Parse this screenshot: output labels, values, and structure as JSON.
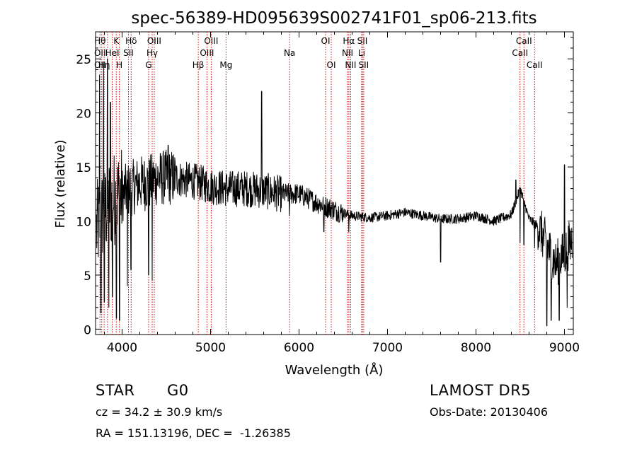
{
  "chart_data": {
    "type": "line",
    "title": "spec-56389-HD095639S002741F01_sp06-213.fits",
    "xlabel": "Wavelength (Å)",
    "ylabel": "Flux (relative)",
    "xlim": [
      3700,
      9100
    ],
    "ylim": [
      -0.5,
      27.5
    ],
    "x_ticks": [
      4000,
      5000,
      6000,
      7000,
      8000,
      9000
    ],
    "x_tick_labels": [
      "4000",
      "5000",
      "6000",
      "7000",
      "8000",
      "9000"
    ],
    "y_ticks": [
      0,
      5,
      10,
      15,
      20,
      25
    ],
    "y_tick_labels": [
      "0",
      "5",
      "10",
      "15",
      "20",
      "25"
    ],
    "grid": false,
    "line_color": "#000000",
    "marker_color": "#cc0000",
    "spectrum_trend": {
      "x": [
        3700,
        3800,
        3900,
        4000,
        4100,
        4200,
        4300,
        4400,
        4500,
        4600,
        4700,
        4800,
        4900,
        5000,
        5200,
        5400,
        5600,
        5800,
        6000,
        6200,
        6400,
        6600,
        6800,
        7000,
        7200,
        7400,
        7600,
        7800,
        8000,
        8200,
        8400,
        8500,
        8600,
        8700,
        8800,
        8900,
        9000,
        9100
      ],
      "y": [
        9,
        11,
        12,
        12.5,
        13,
        13.5,
        13.5,
        14,
        14,
        14,
        13.8,
        13.7,
        13.5,
        13.2,
        13,
        13,
        12.8,
        12.5,
        12.5,
        11.7,
        11,
        10.5,
        10.3,
        10.5,
        10.8,
        10.5,
        10.2,
        10.2,
        10.5,
        10,
        10.6,
        13,
        10.2,
        9.5,
        7.8,
        6,
        7,
        8.5
      ]
    },
    "spectrum_features": [
      {
        "x": 3745,
        "y": 23.5
      },
      {
        "x": 3760,
        "y": 1.5
      },
      {
        "x": 3790,
        "y": 24.5
      },
      {
        "x": 3800,
        "y": 2.5
      },
      {
        "x": 3835,
        "y": 25
      },
      {
        "x": 3850,
        "y": 2
      },
      {
        "x": 3870,
        "y": 21
      },
      {
        "x": 3890,
        "y": 3
      },
      {
        "x": 3935,
        "y": 1
      },
      {
        "x": 3970,
        "y": 0.8
      },
      {
        "x": 4060,
        "y": 4
      },
      {
        "x": 4101,
        "y": 5.5
      },
      {
        "x": 4300,
        "y": 5
      },
      {
        "x": 4340,
        "y": 4.5
      },
      {
        "x": 4520,
        "y": 17
      },
      {
        "x": 5578,
        "y": 22
      },
      {
        "x": 5890,
        "y": 10.5
      },
      {
        "x": 6280,
        "y": 9
      },
      {
        "x": 6563,
        "y": 9
      },
      {
        "x": 7600,
        "y": 6.2
      },
      {
        "x": 8450,
        "y": 13.8
      },
      {
        "x": 8498,
        "y": 8
      },
      {
        "x": 8542,
        "y": 7.8
      },
      {
        "x": 8662,
        "y": 7.5
      },
      {
        "x": 8800,
        "y": 0.3
      },
      {
        "x": 8850,
        "y": 0.8
      },
      {
        "x": 8940,
        "y": 0.8
      },
      {
        "x": 9000,
        "y": 15.2
      },
      {
        "x": 9030,
        "y": 2
      }
    ],
    "line_markers": [
      {
        "x": 3750,
        "rows": [
          {
            "label": "Hθ",
            "row": 0
          },
          {
            "label": "OII",
            "row": 1
          },
          {
            "label": "OII",
            "row": 2
          }
        ]
      },
      {
        "x": 3770,
        "rows": []
      },
      {
        "x": 3797,
        "rows": [
          {
            "label": "Hη",
            "row": 2
          }
        ]
      },
      {
        "x": 3835,
        "rows": []
      },
      {
        "x": 3889,
        "rows": [
          {
            "label": "HeI",
            "row": 1
          }
        ]
      },
      {
        "x": 3934,
        "rows": [
          {
            "label": "K",
            "row": 0
          }
        ]
      },
      {
        "x": 3969,
        "rows": [
          {
            "label": "H",
            "row": 2
          }
        ]
      },
      {
        "x": 4072,
        "rows": [
          {
            "label": "SII",
            "row": 1
          }
        ]
      },
      {
        "x": 4102,
        "rows": [
          {
            "label": "Hδ",
            "row": 0
          }
        ]
      },
      {
        "x": 4300,
        "rows": [
          {
            "label": "G",
            "row": 2
          }
        ]
      },
      {
        "x": 4340,
        "rows": [
          {
            "label": "Hγ",
            "row": 1
          }
        ]
      },
      {
        "x": 4363,
        "rows": [
          {
            "label": "OIII",
            "row": 0
          }
        ]
      },
      {
        "x": 4861,
        "rows": [
          {
            "label": "Hβ",
            "row": 2
          }
        ]
      },
      {
        "x": 4959,
        "rows": [
          {
            "label": "OIII",
            "row": 1
          }
        ]
      },
      {
        "x": 5007,
        "rows": [
          {
            "label": "OIII",
            "row": 0
          }
        ]
      },
      {
        "x": 5175,
        "rows": [
          {
            "label": "Mg",
            "row": 2
          }
        ]
      },
      {
        "x": 5893,
        "rows": [
          {
            "label": "Na",
            "row": 1
          }
        ]
      },
      {
        "x": 6300,
        "rows": [
          {
            "label": "OI",
            "row": 0
          }
        ]
      },
      {
        "x": 6364,
        "rows": [
          {
            "label": "OI",
            "row": 2
          }
        ]
      },
      {
        "x": 6548,
        "rows": [
          {
            "label": "NII",
            "row": 1
          }
        ]
      },
      {
        "x": 6563,
        "rows": [
          {
            "label": "Hα",
            "row": 0
          }
        ]
      },
      {
        "x": 6583,
        "rows": [
          {
            "label": "NII",
            "row": 2
          }
        ]
      },
      {
        "x": 6708,
        "rows": [
          {
            "label": "Li",
            "row": 1
          }
        ]
      },
      {
        "x": 6716,
        "rows": [
          {
            "label": "SII",
            "row": 0
          }
        ]
      },
      {
        "x": 6731,
        "rows": [
          {
            "label": "SII",
            "row": 2
          }
        ]
      },
      {
        "x": 8498,
        "rows": [
          {
            "label": "CaII",
            "row": 1
          }
        ]
      },
      {
        "x": 8542,
        "rows": [
          {
            "label": "CaII",
            "row": 0
          }
        ]
      },
      {
        "x": 8662,
        "rows": [
          {
            "label": "CaII",
            "row": 2
          }
        ]
      }
    ]
  },
  "info": {
    "object_class": "STAR",
    "subclass": "G0",
    "survey": "LAMOST DR5",
    "redshift": "cz = 34.2 ± 30.9 km/s",
    "obs_date": "Obs-Date: 20130406",
    "coords": "RA = 151.13196, DEC =  -1.26385"
  }
}
